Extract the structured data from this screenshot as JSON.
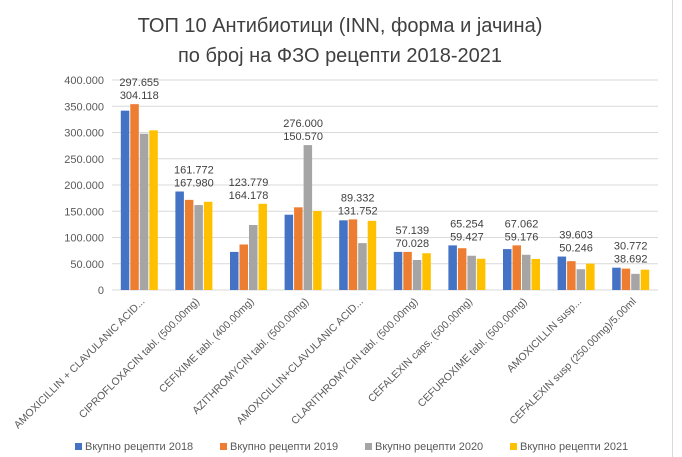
{
  "chart_data": {
    "type": "bar",
    "title_line1": "ТОП 10 Антибиотици (INN, форма и јачина)",
    "title_line2": "по број на ФЗО рецепти 2018-2021",
    "xlabel": "",
    "ylabel": "",
    "ylim": [
      0,
      400000
    ],
    "yticks": [
      "0",
      "50.000",
      "100.000",
      "150.000",
      "200.000",
      "250.000",
      "300.000",
      "350.000",
      "400.000"
    ],
    "grid": true,
    "legend_position": "bottom",
    "categories": [
      "AMOXICILLIN + CLAVULANIC ACID...",
      "CIPROFLOXACIN tabl. (500.00mg)",
      "CEFIXIME tabl. (400.00mg)",
      "AZITHROMYCIN tabl. (500.00mg)",
      "AMOXICILLIN+CLAVULANIC ACID...",
      "CLARITHROMYCIN tabl. (500.00mg)",
      "CEFALEXIN caps. (500.00mg)",
      "CEFUROXIME tabl. (500.00mg)",
      "AMOXICILLIN susp...",
      "CEFALEXIN susp (250.00mg)/5.00ml"
    ],
    "series": [
      {
        "name": "Вкупно рецепти 2018",
        "color": "#4472C4",
        "values": [
          341600,
          187600,
          72600,
          143400,
          132700,
          72600,
          85000,
          77900,
          63700,
          42500
        ],
        "labels": []
      },
      {
        "name": "Вкупно рецепти 2019",
        "color": "#ED7D31",
        "values": [
          354000,
          171700,
          86700,
          157500,
          134500,
          72600,
          79600,
          85000,
          54900,
          40700
        ],
        "labels": []
      },
      {
        "name": "Вкупно рецепти 2020",
        "color": "#A5A5A5",
        "values": [
          297655,
          161772,
          123779,
          276000,
          89332,
          57139,
          65254,
          67062,
          39603,
          30772
        ],
        "labels": [
          "297.655",
          "161.772",
          "123.779",
          "276.000",
          "89.332",
          "57.139",
          "65.254",
          "67.062",
          "39.603",
          "30.772"
        ]
      },
      {
        "name": "Вкупно рецепти 2021",
        "color": "#FFC000",
        "values": [
          304118,
          167980,
          164178,
          150570,
          131752,
          70028,
          59427,
          59176,
          50246,
          38692
        ],
        "labels": [
          "304.118",
          "167.980",
          "164.178",
          "150.570",
          "131.752",
          "70.028",
          "59.427",
          "59.176",
          "50.246",
          "38.692"
        ]
      }
    ]
  }
}
